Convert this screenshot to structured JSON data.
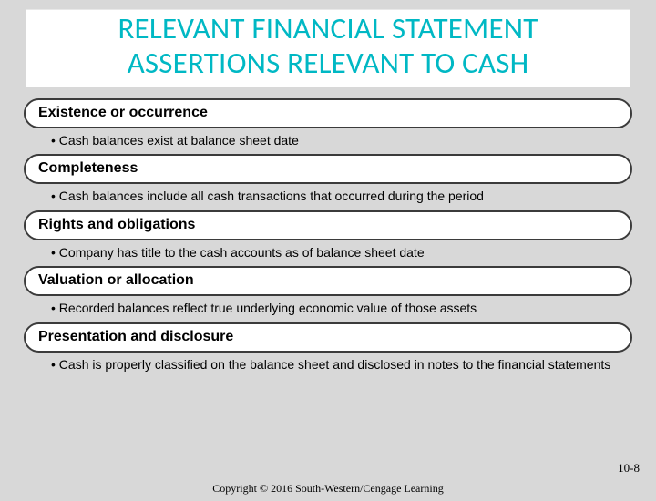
{
  "title": "RELEVANT FINANCIAL STATEMENT ASSERTIONS RELEVANT TO CASH",
  "sections": [
    {
      "heading": "Existence or occurrence",
      "bullet": "Cash balances exist at balance sheet date"
    },
    {
      "heading": "Completeness",
      "bullet": "Cash balances include all cash transactions that occurred during the period"
    },
    {
      "heading": "Rights and obligations",
      "bullet": "Company has title to the cash accounts as of balance sheet date"
    },
    {
      "heading": "Valuation or allocation",
      "bullet": "Recorded balances reflect true underlying economic value of those assets"
    },
    {
      "heading": "Presentation and disclosure",
      "bullet": "Cash is properly classified on the balance sheet and disclosed in notes to the financial statements"
    }
  ],
  "page_number": "10-8",
  "copyright": "Copyright © 2016 South-Western/Cengage Learning",
  "colors": {
    "page_bg": "#d8d8d8",
    "title_color": "#00b8c4",
    "pill_bg": "#ffffff",
    "pill_border": "#3b3b3b"
  },
  "typography": {
    "title_fontsize": 33,
    "heading_fontsize": 16,
    "bullet_fontsize": 14,
    "footer_fontsize": 12
  }
}
